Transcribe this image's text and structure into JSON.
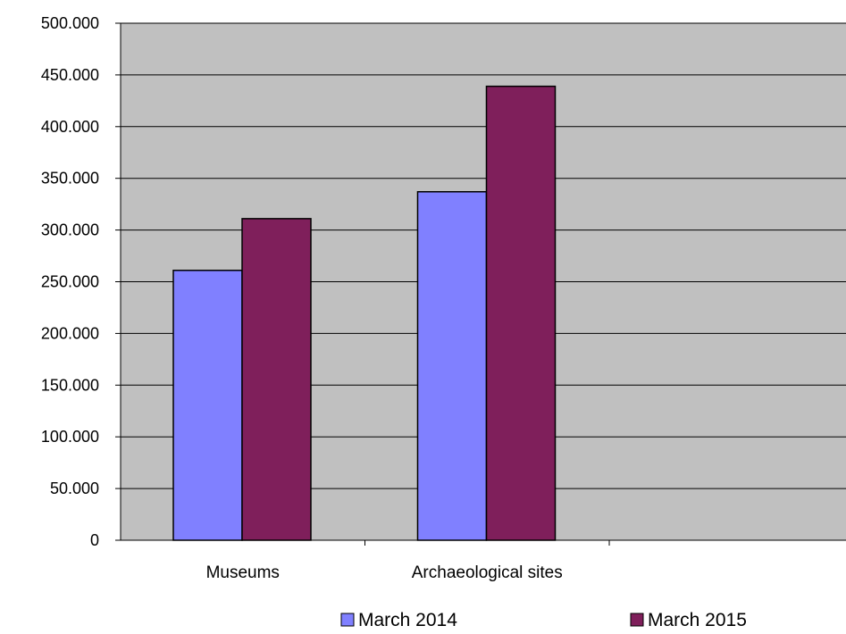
{
  "chart_data": {
    "type": "bar",
    "title": "",
    "xlabel": "",
    "ylabel": "",
    "categories": [
      "Museums",
      "Archaeological sites",
      ""
    ],
    "series": [
      {
        "name": "March 2014",
        "color": "#8080ff",
        "values": [
          261000,
          337000,
          null
        ]
      },
      {
        "name": "March 2015",
        "color": "#7f1f5b",
        "values": [
          311000,
          439000,
          null
        ]
      }
    ],
    "ylim": [
      0,
      500000
    ],
    "yticks": [
      {
        "value": 0,
        "label": "0"
      },
      {
        "value": 50000,
        "label": "50.000"
      },
      {
        "value": 100000,
        "label": "100.000"
      },
      {
        "value": 150000,
        "label": "150.000"
      },
      {
        "value": 200000,
        "label": "200.000"
      },
      {
        "value": 250000,
        "label": "250.000"
      },
      {
        "value": 300000,
        "label": "300.000"
      },
      {
        "value": 350000,
        "label": "350.000"
      },
      {
        "value": 400000,
        "label": "400.000"
      },
      {
        "value": 450000,
        "label": "450.000"
      },
      {
        "value": 500000,
        "label": "500.000"
      }
    ],
    "grid": true,
    "plot_background": "#c0c0c0",
    "legend": {
      "placement": "bottom"
    }
  }
}
